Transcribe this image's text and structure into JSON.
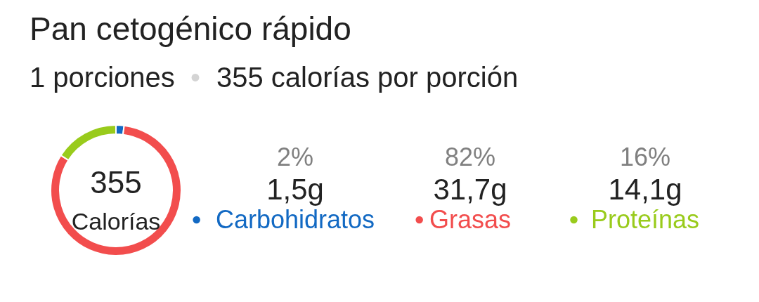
{
  "chart_data": {
    "type": "donut",
    "title": "Pan cetogénico rápido",
    "subtitle": "1 porciones • 355 calorías por porción",
    "categories": [
      "Carbohidratos",
      "Grasas",
      "Proteínas"
    ],
    "values": [
      2,
      82,
      16
    ],
    "colors": [
      "#1269c3",
      "#f24d4d",
      "#99cb1c"
    ],
    "annotations": [
      "355",
      "Calorías",
      "2%",
      "82%",
      "16%",
      "1,5g",
      "31,7g",
      "14,1g"
    ],
    "legend": "right"
  }
}
